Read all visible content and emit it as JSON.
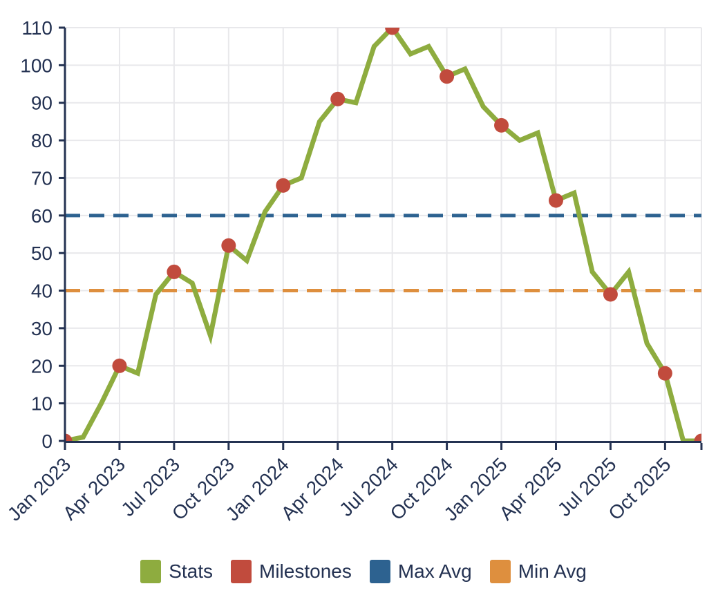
{
  "chart_data": {
    "type": "line",
    "title": "",
    "xlabel": "",
    "ylabel": "",
    "ylim": [
      0,
      110
    ],
    "grid": true,
    "legend_position": "bottom",
    "x": [
      "Jan 2023",
      "Feb 2023",
      "Mar 2023",
      "Apr 2023",
      "May 2023",
      "Jun 2023",
      "Jul 2023",
      "Aug 2023",
      "Sep 2023",
      "Oct 2023",
      "Nov 2023",
      "Dec 2023",
      "Jan 2024",
      "Feb 2024",
      "Mar 2024",
      "Apr 2024",
      "May 2024",
      "Jun 2024",
      "Jul 2024",
      "Aug 2024",
      "Sep 2024",
      "Oct 2024",
      "Nov 2024",
      "Dec 2024",
      "Jan 2025",
      "Feb 2025",
      "Mar 2025",
      "Apr 2025",
      "May 2025",
      "Jun 2025",
      "Jul 2025",
      "Aug 2025",
      "Sep 2025",
      "Oct 2025",
      "Nov 2025",
      "Dec 2025"
    ],
    "x_tick_labels": [
      "Jan 2023",
      "Apr 2023",
      "Jul 2023",
      "Oct 2023",
      "Jan 2024",
      "Apr 2024",
      "Jul 2024",
      "Oct 2024",
      "Jan 2025",
      "Apr 2025",
      "Jul 2025",
      "Oct 2025"
    ],
    "y_ticks": [
      0,
      10,
      20,
      30,
      40,
      50,
      60,
      70,
      80,
      90,
      100,
      110
    ],
    "series": [
      {
        "name": "Stats",
        "kind": "line",
        "color": "#8eac3f",
        "values": [
          0,
          1,
          10,
          20,
          18,
          39,
          45,
          42,
          28,
          52,
          48,
          61,
          68,
          70,
          85,
          91,
          90,
          105,
          110,
          103,
          105,
          97,
          99,
          89,
          84,
          80,
          82,
          64,
          66,
          45,
          39,
          45,
          26,
          18,
          0,
          0
        ]
      },
      {
        "name": "Milestones",
        "kind": "scatter",
        "color": "#c14b3d",
        "points": [
          {
            "x": "Jan 2023",
            "y": 0
          },
          {
            "x": "Apr 2023",
            "y": 20
          },
          {
            "x": "Jul 2023",
            "y": 45
          },
          {
            "x": "Oct 2023",
            "y": 52
          },
          {
            "x": "Jan 2024",
            "y": 68
          },
          {
            "x": "Apr 2024",
            "y": 91
          },
          {
            "x": "Jul 2024",
            "y": 110
          },
          {
            "x": "Oct 2024",
            "y": 97
          },
          {
            "x": "Jan 2025",
            "y": 84
          },
          {
            "x": "Apr 2025",
            "y": 64
          },
          {
            "x": "Jul 2025",
            "y": 39
          },
          {
            "x": "Oct 2025",
            "y": 18
          },
          {
            "x": "Dec 2025",
            "y": 0
          }
        ]
      },
      {
        "name": "Max Avg",
        "kind": "hline",
        "color": "#2d6290",
        "value": 60
      },
      {
        "name": "Min Avg",
        "kind": "hline",
        "color": "#de8f3e",
        "value": 40
      }
    ]
  },
  "legend": {
    "items": [
      {
        "label": "Stats",
        "color": "#8eac3f"
      },
      {
        "label": "Milestones",
        "color": "#c14b3d"
      },
      {
        "label": "Max Avg",
        "color": "#2d6290"
      },
      {
        "label": "Min Avg",
        "color": "#de8f3e"
      }
    ]
  },
  "style": {
    "axis_color": "#243252",
    "tick_label_color": "#243252",
    "grid_color": "#e8e8eb",
    "background": "#ffffff"
  }
}
